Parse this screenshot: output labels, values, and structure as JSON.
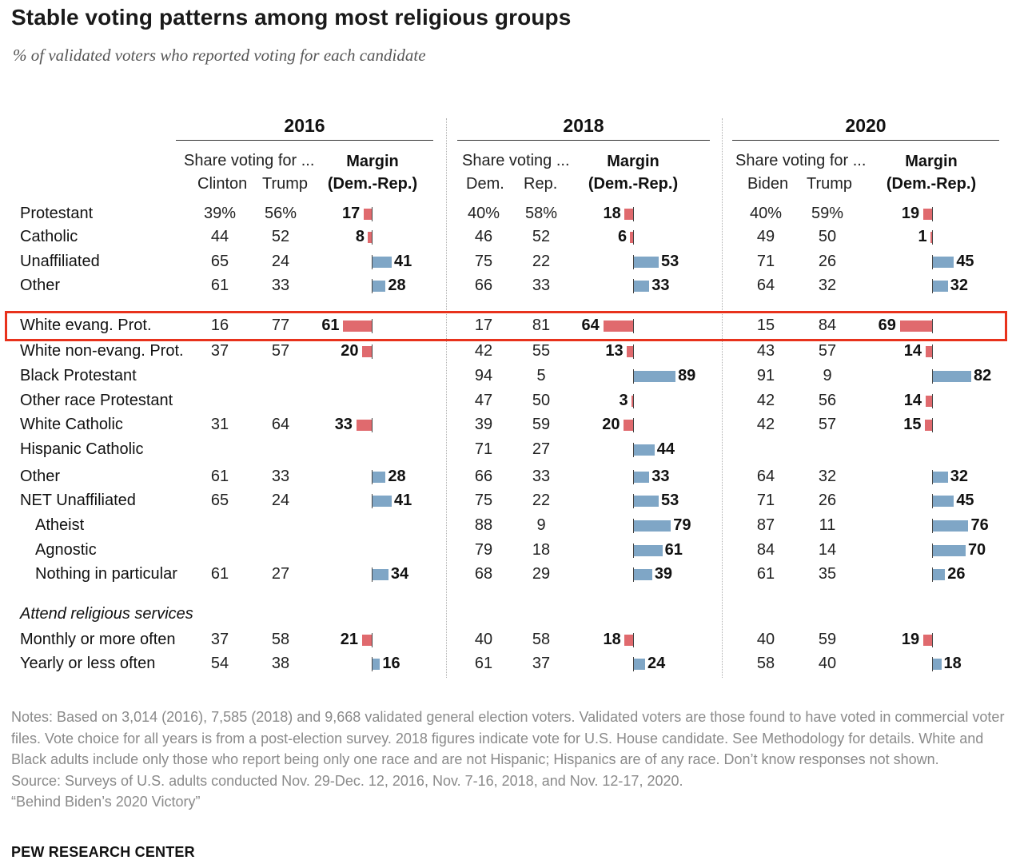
{
  "title": "Stable voting patterns among most religious groups",
  "subtitle": "% of validated voters who reported voting for each candidate",
  "chart_data": {
    "type": "table",
    "years": [
      {
        "label": "2016",
        "share_label": "Share voting for ...",
        "cand1": "Clinton",
        "cand2": "Trump",
        "margin_label": "Margin",
        "margin_sub": "(Dem.-Rep.)"
      },
      {
        "label": "2018",
        "share_label": "Share voting ...",
        "cand1": "Dem.",
        "cand2": "Rep.",
        "margin_label": "Margin",
        "margin_sub": "(Dem.-Rep.)"
      },
      {
        "label": "2020",
        "share_label": "Share voting for ...",
        "cand1": "Biden",
        "cand2": "Trump",
        "margin_label": "Margin",
        "margin_sub": "(Dem.-Rep.)"
      }
    ],
    "section_label": "Attend religious services",
    "rows": [
      {
        "label": "Protestant",
        "indent": 0,
        "highlight": false,
        "cells": [
          {
            "a": "39%",
            "b": "56%",
            "m": 17,
            "side": "rep"
          },
          {
            "a": "40%",
            "b": "58%",
            "m": 18,
            "side": "rep"
          },
          {
            "a": "40%",
            "b": "59%",
            "m": 19,
            "side": "rep"
          }
        ]
      },
      {
        "label": "Catholic",
        "indent": 0,
        "highlight": false,
        "cells": [
          {
            "a": "44",
            "b": "52",
            "m": 8,
            "side": "rep"
          },
          {
            "a": "46",
            "b": "52",
            "m": 6,
            "side": "rep"
          },
          {
            "a": "49",
            "b": "50",
            "m": 1,
            "side": "rep"
          }
        ]
      },
      {
        "label": "Unaffiliated",
        "indent": 0,
        "highlight": false,
        "cells": [
          {
            "a": "65",
            "b": "24",
            "m": 41,
            "side": "dem"
          },
          {
            "a": "75",
            "b": "22",
            "m": 53,
            "side": "dem"
          },
          {
            "a": "71",
            "b": "26",
            "m": 45,
            "side": "dem"
          }
        ]
      },
      {
        "label": "Other",
        "indent": 0,
        "highlight": false,
        "cells": [
          {
            "a": "61",
            "b": "33",
            "m": 28,
            "side": "dem"
          },
          {
            "a": "66",
            "b": "33",
            "m": 33,
            "side": "dem"
          },
          {
            "a": "64",
            "b": "32",
            "m": 32,
            "side": "dem"
          }
        ]
      },
      {
        "label": "White evang. Prot.",
        "indent": 0,
        "highlight": true,
        "cells": [
          {
            "a": "16",
            "b": "77",
            "m": 61,
            "side": "rep"
          },
          {
            "a": "17",
            "b": "81",
            "m": 64,
            "side": "rep"
          },
          {
            "a": "15",
            "b": "84",
            "m": 69,
            "side": "rep"
          }
        ]
      },
      {
        "label": "White non-evang. Prot.",
        "indent": 0,
        "highlight": false,
        "cells": [
          {
            "a": "37",
            "b": "57",
            "m": 20,
            "side": "rep"
          },
          {
            "a": "42",
            "b": "55",
            "m": 13,
            "side": "rep"
          },
          {
            "a": "43",
            "b": "57",
            "m": 14,
            "side": "rep"
          }
        ]
      },
      {
        "label": "Black Protestant",
        "indent": 0,
        "highlight": false,
        "cells": [
          null,
          {
            "a": "94",
            "b": "5",
            "m": 89,
            "side": "dem"
          },
          {
            "a": "91",
            "b": "9",
            "m": 82,
            "side": "dem"
          }
        ]
      },
      {
        "label": "Other race Protestant",
        "indent": 0,
        "highlight": false,
        "cells": [
          null,
          {
            "a": "47",
            "b": "50",
            "m": 3,
            "side": "rep"
          },
          {
            "a": "42",
            "b": "56",
            "m": 14,
            "side": "rep"
          }
        ]
      },
      {
        "label": "White Catholic",
        "indent": 0,
        "highlight": false,
        "cells": [
          {
            "a": "31",
            "b": "64",
            "m": 33,
            "side": "rep"
          },
          {
            "a": "39",
            "b": "59",
            "m": 20,
            "side": "rep"
          },
          {
            "a": "42",
            "b": "57",
            "m": 15,
            "side": "rep"
          }
        ]
      },
      {
        "label": "Hispanic Catholic",
        "indent": 0,
        "highlight": false,
        "cells": [
          null,
          {
            "a": "71",
            "b": "27",
            "m": 44,
            "side": "dem"
          },
          null
        ]
      },
      {
        "label": "Other",
        "indent": 0,
        "highlight": false,
        "cells": [
          {
            "a": "61",
            "b": "33",
            "m": 28,
            "side": "dem"
          },
          {
            "a": "66",
            "b": "33",
            "m": 33,
            "side": "dem"
          },
          {
            "a": "64",
            "b": "32",
            "m": 32,
            "side": "dem"
          }
        ]
      },
      {
        "label": "NET Unaffiliated",
        "indent": 0,
        "highlight": false,
        "cells": [
          {
            "a": "65",
            "b": "24",
            "m": 41,
            "side": "dem"
          },
          {
            "a": "75",
            "b": "22",
            "m": 53,
            "side": "dem"
          },
          {
            "a": "71",
            "b": "26",
            "m": 45,
            "side": "dem"
          }
        ]
      },
      {
        "label": "Atheist",
        "indent": 1,
        "highlight": false,
        "cells": [
          null,
          {
            "a": "88",
            "b": "9",
            "m": 79,
            "side": "dem"
          },
          {
            "a": "87",
            "b": "11",
            "m": 76,
            "side": "dem"
          }
        ]
      },
      {
        "label": "Agnostic",
        "indent": 1,
        "highlight": false,
        "cells": [
          null,
          {
            "a": "79",
            "b": "18",
            "m": 61,
            "side": "dem"
          },
          {
            "a": "84",
            "b": "14",
            "m": 70,
            "side": "dem"
          }
        ]
      },
      {
        "label": "Nothing in particular",
        "indent": 1,
        "highlight": false,
        "cells": [
          {
            "a": "61",
            "b": "27",
            "m": 34,
            "side": "dem"
          },
          {
            "a": "68",
            "b": "29",
            "m": 39,
            "side": "dem"
          },
          {
            "a": "61",
            "b": "35",
            "m": 26,
            "side": "dem"
          }
        ]
      },
      {
        "label": "Monthly or more often",
        "indent": 0,
        "highlight": false,
        "cells": [
          {
            "a": "37",
            "b": "58",
            "m": 21,
            "side": "rep"
          },
          {
            "a": "40",
            "b": "58",
            "m": 18,
            "side": "rep"
          },
          {
            "a": "40",
            "b": "59",
            "m": 19,
            "side": "rep"
          }
        ]
      },
      {
        "label": "Yearly or less often",
        "indent": 0,
        "highlight": false,
        "cells": [
          {
            "a": "54",
            "b": "38",
            "m": 16,
            "side": "dem"
          },
          {
            "a": "61",
            "b": "37",
            "m": 24,
            "side": "dem"
          },
          {
            "a": "58",
            "b": "40",
            "m": 18,
            "side": "dem"
          }
        ]
      }
    ],
    "colors": {
      "dem": "#7fa6c6",
      "rep": "#e06a6e",
      "highlight": "#e8321c"
    }
  },
  "notes": [
    "Notes: Based on 3,014 (2016), 7,585 (2018) and 9,668 validated general election voters. Validated voters are those found to have voted in commercial voter files. Vote choice for all years is from a post-election survey. 2018 figures indicate vote for U.S. House candidate. See Methodology for details. White and Black adults include only those who report being only one race and are not Hispanic; Hispanics are of any race. Don’t know responses not shown.",
    "Source: Surveys of U.S. adults conducted Nov. 29-Dec. 12, 2016, Nov. 7-16, 2018, and Nov. 12-17, 2020.",
    "“Behind Biden’s 2020 Victory”"
  ],
  "brand": "PEW RESEARCH CENTER"
}
